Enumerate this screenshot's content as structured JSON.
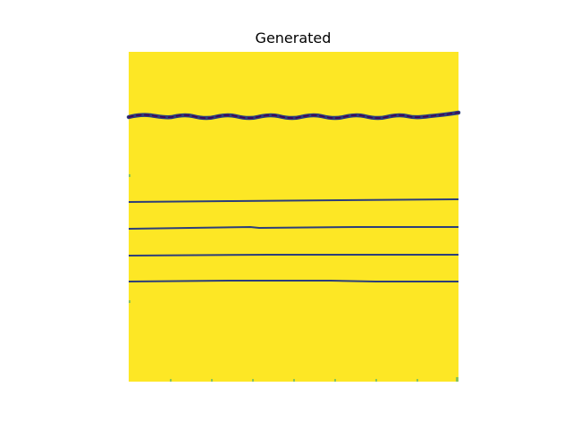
{
  "figure": {
    "title": "Generated",
    "image": {
      "background_color": "#fde725",
      "line_color": "#2c3e7a",
      "line_core_color": "#440154",
      "edge_color": "#3fae7a"
    }
  }
}
